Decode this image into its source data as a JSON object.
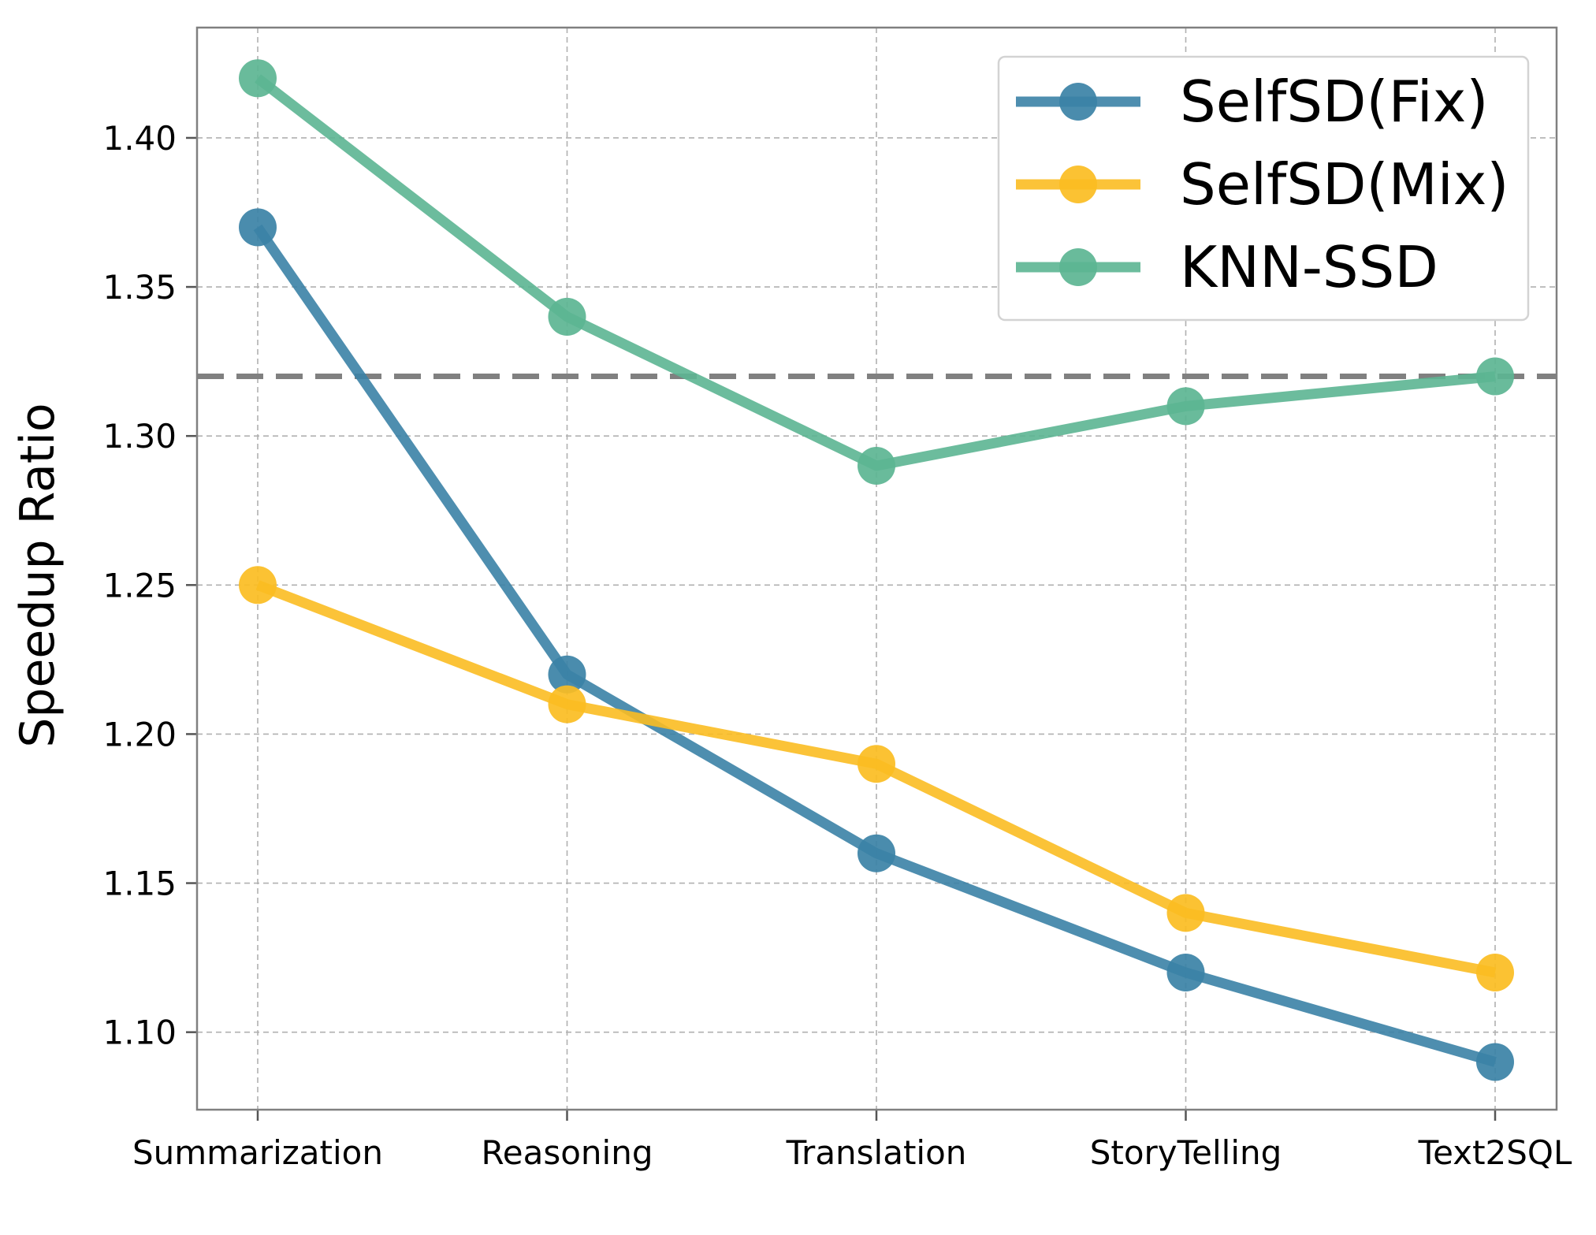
{
  "chart_data": {
    "type": "line",
    "title": "",
    "xlabel": "",
    "ylabel": "Speedup Ratio",
    "categories": [
      "Summarization",
      "Reasoning",
      "Translation",
      "StoryTelling",
      "Text2SQL"
    ],
    "ylim": [
      1.074,
      1.437
    ],
    "yticks": [
      "1.10",
      "1.15",
      "1.20",
      "1.25",
      "1.30",
      "1.35",
      "1.40"
    ],
    "grid": true,
    "legend_position": "top-right",
    "reference_line": {
      "y": 1.32,
      "color": "#808080",
      "style": "dashed"
    },
    "series": [
      {
        "name": "SelfSD(Fix)",
        "color": "#3b82a6",
        "values": [
          1.37,
          1.22,
          1.16,
          1.12,
          1.09
        ]
      },
      {
        "name": "SelfSD(Mix)",
        "color": "#fbbd22",
        "values": [
          1.25,
          1.21,
          1.19,
          1.14,
          1.12
        ]
      },
      {
        "name": "KNN-SSD",
        "color": "#5cb592",
        "values": [
          1.42,
          1.34,
          1.29,
          1.31,
          1.32
        ]
      }
    ]
  }
}
